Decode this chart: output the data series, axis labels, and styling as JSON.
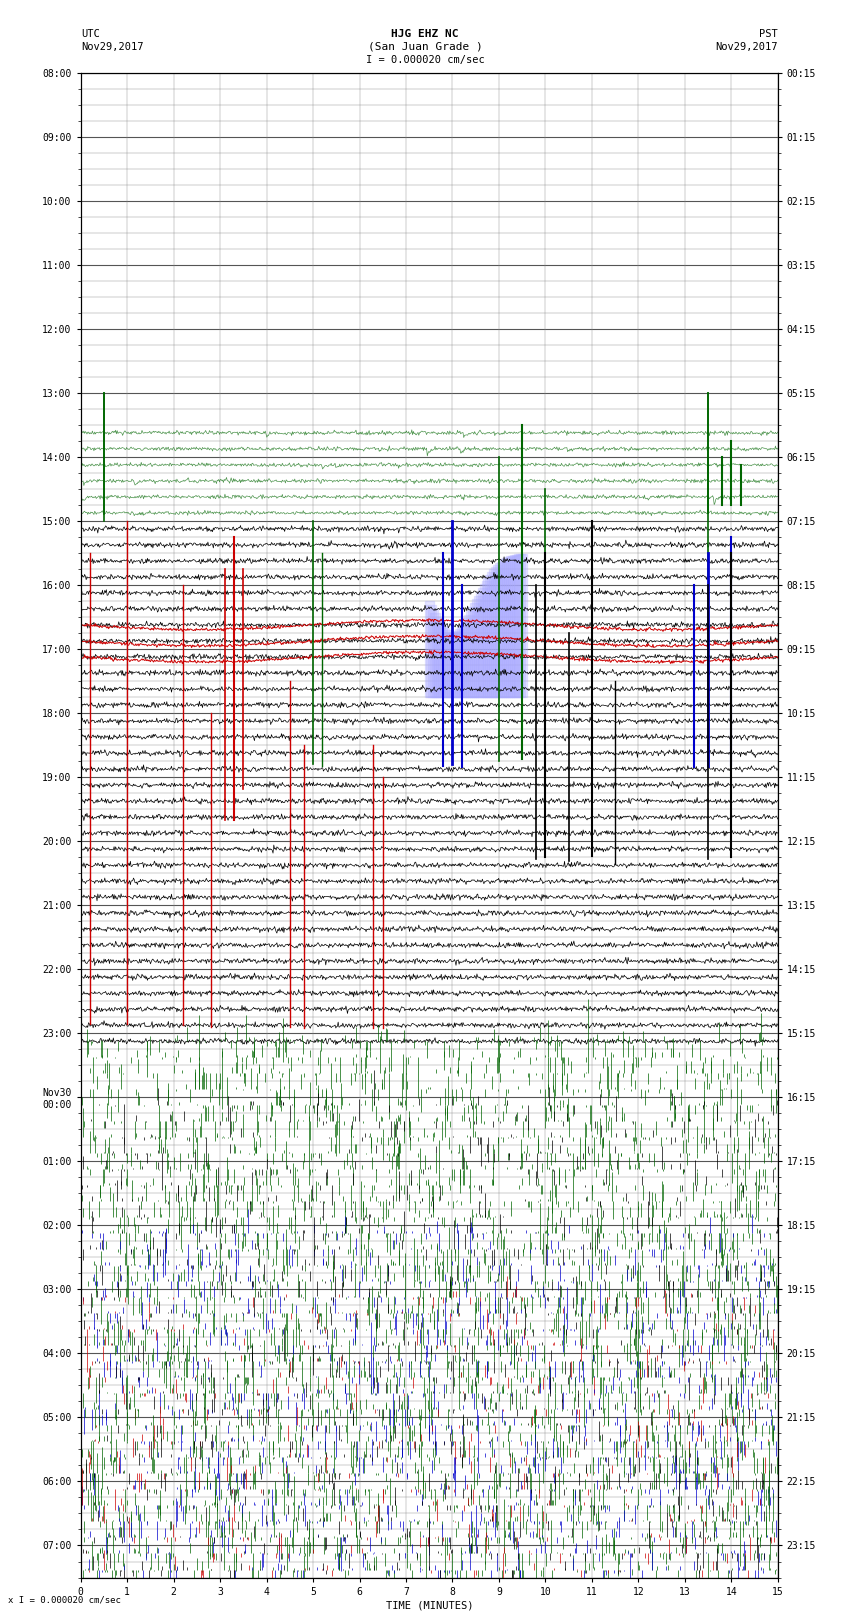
{
  "title_line1": "HJG EHZ NC",
  "title_line2": "(San Juan Grade )",
  "scale_label": "I = 0.000020 cm/sec",
  "scale_label_bottom": "x I = 0.000020 cm/sec",
  "utc_label": "UTC",
  "utc_date": "Nov29,2017",
  "pst_label": "PST",
  "pst_date": "Nov29,2017",
  "time_label": "TIME (MINUTES)",
  "bg_color": "#ffffff",
  "grid_color": "#888888",
  "text_color": "#000000",
  "fig_width": 8.5,
  "fig_height": 16.13,
  "dpi": 100,
  "n_rows": 94,
  "utc_labels": [
    "08:00",
    "09:00",
    "10:00",
    "11:00",
    "12:00",
    "13:00",
    "14:00",
    "15:00",
    "16:00",
    "17:00",
    "18:00",
    "19:00",
    "20:00",
    "21:00",
    "22:00",
    "23:00",
    "Nov30\n00:00",
    "01:00",
    "02:00",
    "03:00",
    "04:00",
    "05:00",
    "06:00",
    "07:00"
  ],
  "pst_labels": [
    "00:15",
    "01:15",
    "02:15",
    "03:15",
    "04:15",
    "05:15",
    "06:15",
    "07:15",
    "08:15",
    "09:15",
    "10:15",
    "11:15",
    "12:15",
    "13:15",
    "14:15",
    "15:15",
    "16:15",
    "17:15",
    "18:15",
    "19:15",
    "20:15",
    "21:15",
    "22:15",
    "23:15"
  ]
}
